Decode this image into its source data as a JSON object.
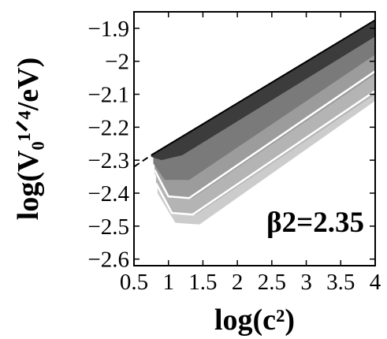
{
  "chart_data": {
    "type": "area",
    "xlabel": "log(c²)",
    "ylabel": "log(V₀¹ᐟ⁴/eV)",
    "xlim": [
      0.5,
      4.0
    ],
    "ylim": [
      -2.62,
      -1.85
    ],
    "xticks": [
      0.5,
      1,
      1.5,
      2,
      2.5,
      3,
      3.5,
      4
    ],
    "xtick_labels": [
      "0.5",
      "1",
      "1.5",
      "2",
      "2.5",
      "3",
      "3.5",
      "4"
    ],
    "yticks": [
      -2.6,
      -2.5,
      -2.4,
      -2.3,
      -2.2,
      -2.1,
      -2.0,
      -1.9
    ],
    "ytick_labels": [
      "−2.6",
      "−2.5",
      "−2.4",
      "−2.3",
      "−2.2",
      "−2.1",
      "−2",
      "−1.9"
    ],
    "annotation": "β2=2.35",
    "upper_boundary": {
      "x": [
        0.5,
        0.75,
        4.0
      ],
      "y": [
        -2.32,
        -2.285,
        -1.875
      ]
    },
    "bands": [
      {
        "shade": "#3c3c3c",
        "lower_y_at_x": {
          "x": [
            0.75,
            0.9,
            1.2,
            4.0
          ],
          "y": [
            -2.29,
            -2.3,
            -2.285,
            -1.925
          ]
        }
      },
      {
        "shade": "#7a7a7a",
        "lower_y_at_x": {
          "x": [
            0.78,
            0.95,
            1.3,
            4.0
          ],
          "y": [
            -2.31,
            -2.36,
            -2.36,
            -1.98
          ]
        }
      },
      {
        "shade": "#9c9c9c",
        "lower_y_at_x": {
          "x": [
            0.8,
            1.0,
            1.35,
            4.0
          ],
          "y": [
            -2.34,
            -2.41,
            -2.415,
            -2.04
          ]
        }
      },
      {
        "shade": "#b4b4b4",
        "lower_y_at_x": {
          "x": [
            0.82,
            1.05,
            1.4,
            4.0
          ],
          "y": [
            -2.37,
            -2.46,
            -2.465,
            -2.1
          ]
        }
      },
      {
        "shade": "#cccccc",
        "lower_y_at_x": {
          "x": [
            0.84,
            1.1,
            1.45,
            4.0
          ],
          "y": [
            -2.4,
            -2.49,
            -2.495,
            -2.12
          ]
        }
      }
    ],
    "white_contours": [
      {
        "x": [
          0.8,
          1.0,
          1.3,
          4.0
        ],
        "y": [
          -2.33,
          -2.41,
          -2.415,
          -2.03
        ]
      },
      {
        "x": [
          0.82,
          1.05,
          1.35,
          4.0
        ],
        "y": [
          -2.37,
          -2.46,
          -2.465,
          -2.09
        ]
      }
    ],
    "colors": {
      "frame": "#000000",
      "dark": "#3c3c3c",
      "mid": "#7a7a7a",
      "light": "#b4b4b4",
      "lightest": "#cccccc",
      "contour": "#ffffff"
    }
  }
}
